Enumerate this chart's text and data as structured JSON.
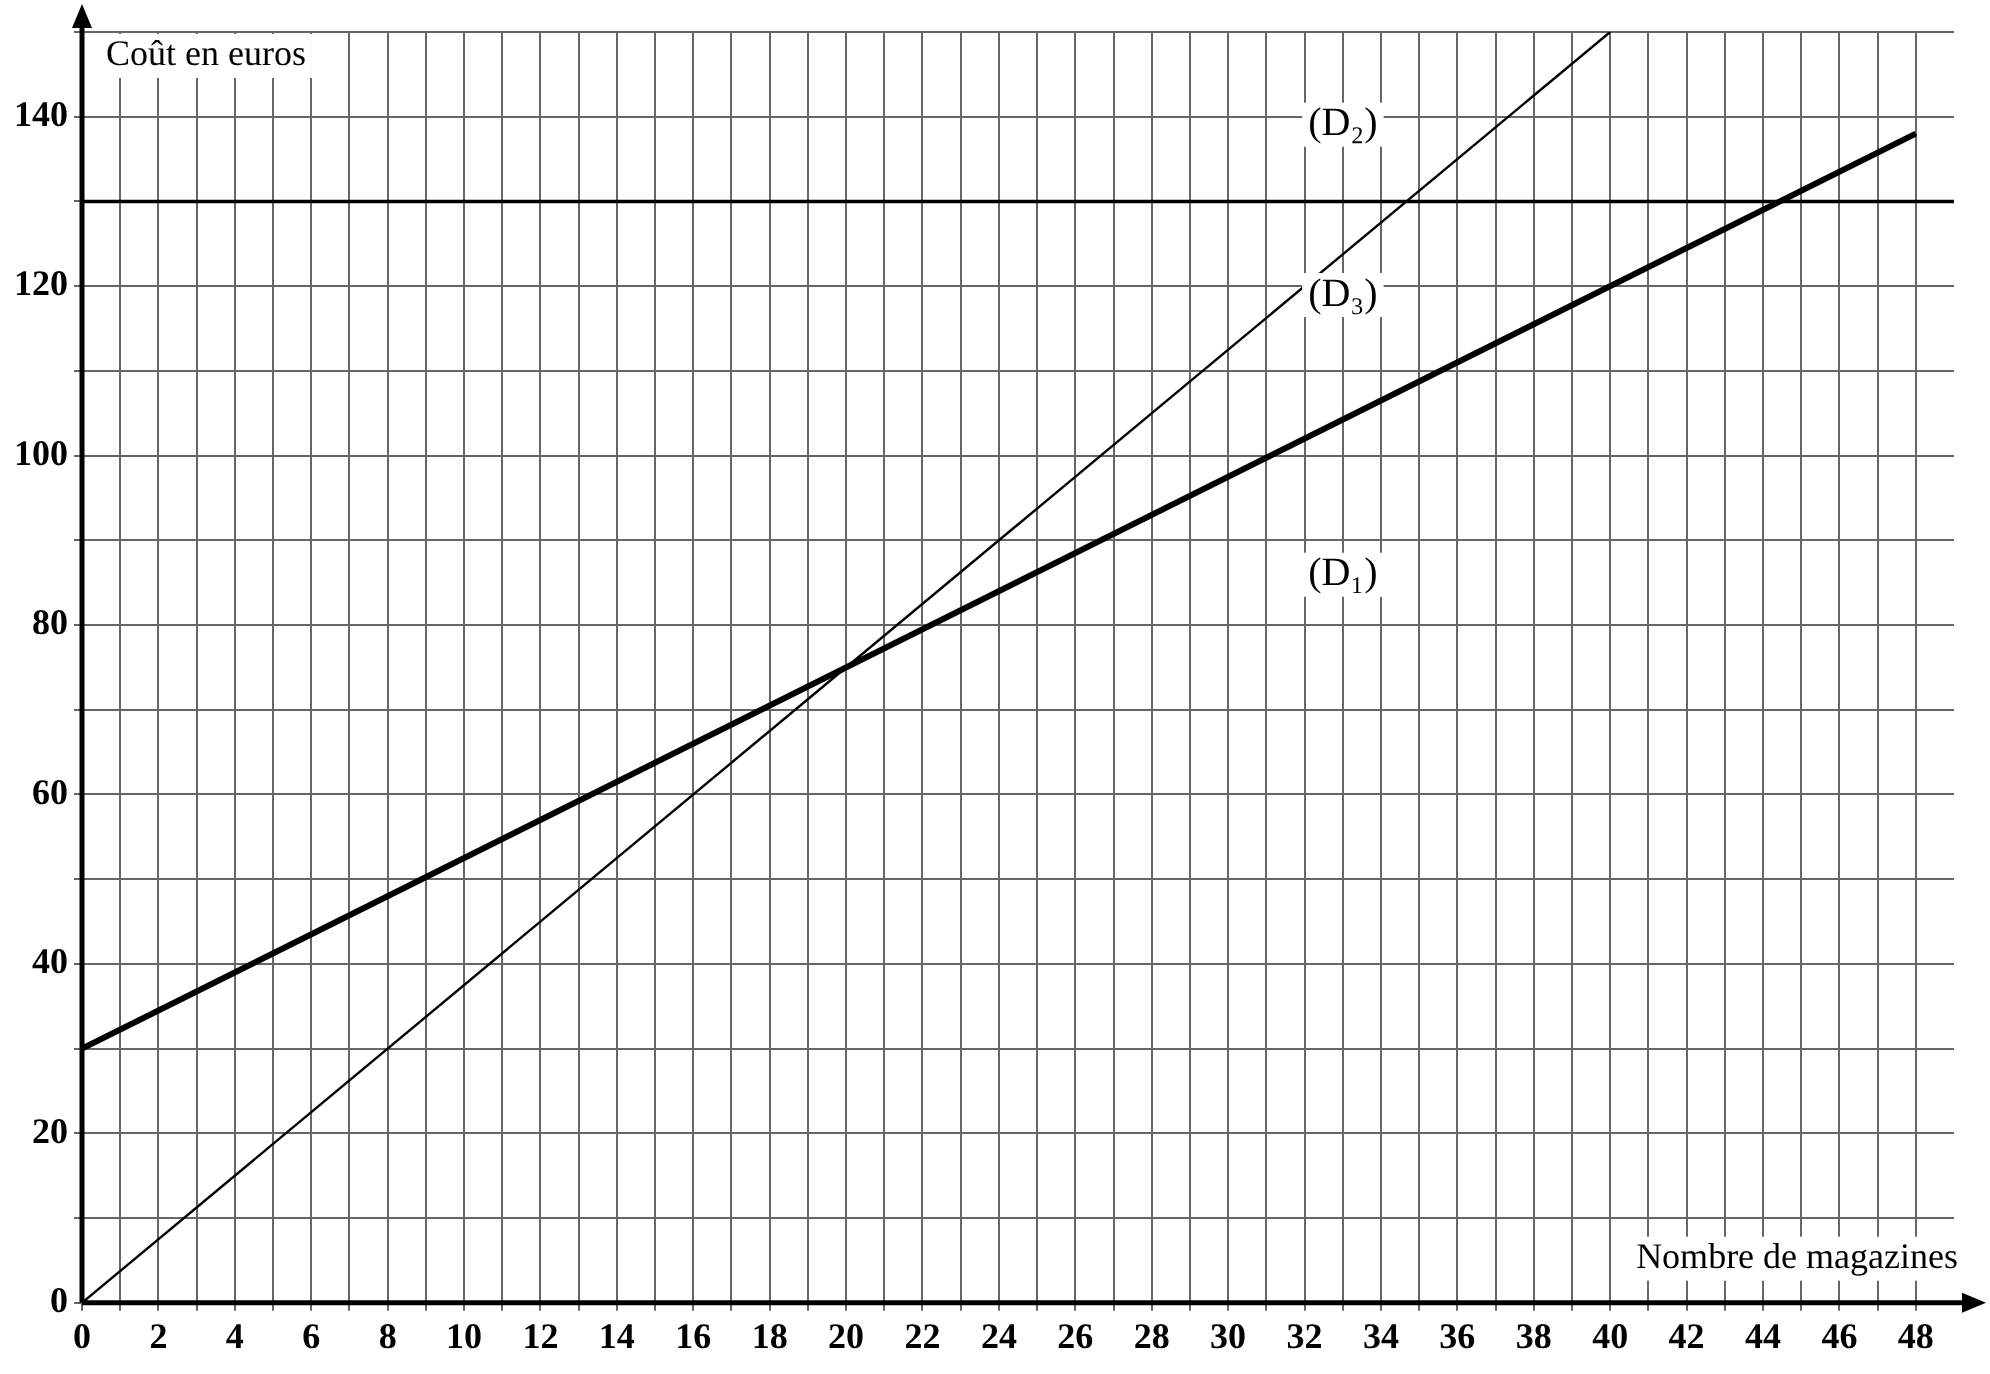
{
  "chart_data": {
    "type": "line",
    "xlabel": "Nombre de magazines",
    "ylabel": "Coût en euros",
    "xlim": [
      0,
      49
    ],
    "ylim": [
      0,
      150
    ],
    "xticks": [
      0,
      {
        "value": 1,
        "label": null
      },
      2,
      {
        "value": 3,
        "label": null
      },
      4,
      {
        "value": 5,
        "label": null
      },
      6,
      {
        "value": 7,
        "label": null
      },
      8,
      {
        "value": 9,
        "label": null
      },
      10,
      {
        "value": 11,
        "label": null
      },
      12,
      {
        "value": 13,
        "label": null
      },
      14,
      {
        "value": 15,
        "label": null
      },
      16,
      {
        "value": 17,
        "label": null
      },
      18,
      {
        "value": 19,
        "label": null
      },
      20,
      {
        "value": 21,
        "label": null
      },
      22,
      {
        "value": 23,
        "label": null
      },
      24,
      {
        "value": 25,
        "label": null
      },
      26,
      {
        "value": 27,
        "label": null
      },
      28,
      {
        "value": 29,
        "label": null
      },
      30,
      {
        "value": 31,
        "label": null
      },
      32,
      {
        "value": 33,
        "label": null
      },
      34,
      {
        "value": 35,
        "label": null
      },
      36,
      {
        "value": 37,
        "label": null
      },
      38,
      {
        "value": 39,
        "label": null
      },
      40,
      {
        "value": 41,
        "label": null
      },
      42,
      {
        "value": 43,
        "label": null
      },
      44,
      {
        "value": 45,
        "label": null
      },
      46,
      {
        "value": 47,
        "label": null
      },
      48
    ],
    "yticks": [
      0,
      {
        "value": 10,
        "label": null
      },
      20,
      {
        "value": 30,
        "label": null
      },
      40,
      {
        "value": 50,
        "label": null
      },
      60,
      {
        "value": 70,
        "label": null
      },
      80,
      {
        "value": 90,
        "label": null
      },
      100,
      {
        "value": 110,
        "label": null
      },
      120,
      {
        "value": 130,
        "label": null
      },
      140,
      {
        "value": 150,
        "label": null
      }
    ],
    "grid": true,
    "legend": false,
    "marker": "none",
    "line_style": "solid",
    "series": [
      {
        "name": "(D₁)",
        "color": "#000000",
        "x": [
          0,
          48
        ],
        "values": [
          30,
          138
        ]
      },
      {
        "name": "(D₂)",
        "color": "#000000",
        "x": [
          0,
          49
        ],
        "values": [
          130,
          130
        ]
      },
      {
        "name": "(D₃)",
        "color": "#000000",
        "x": [
          0,
          40
        ],
        "values": [
          0,
          150
        ]
      }
    ]
  }
}
